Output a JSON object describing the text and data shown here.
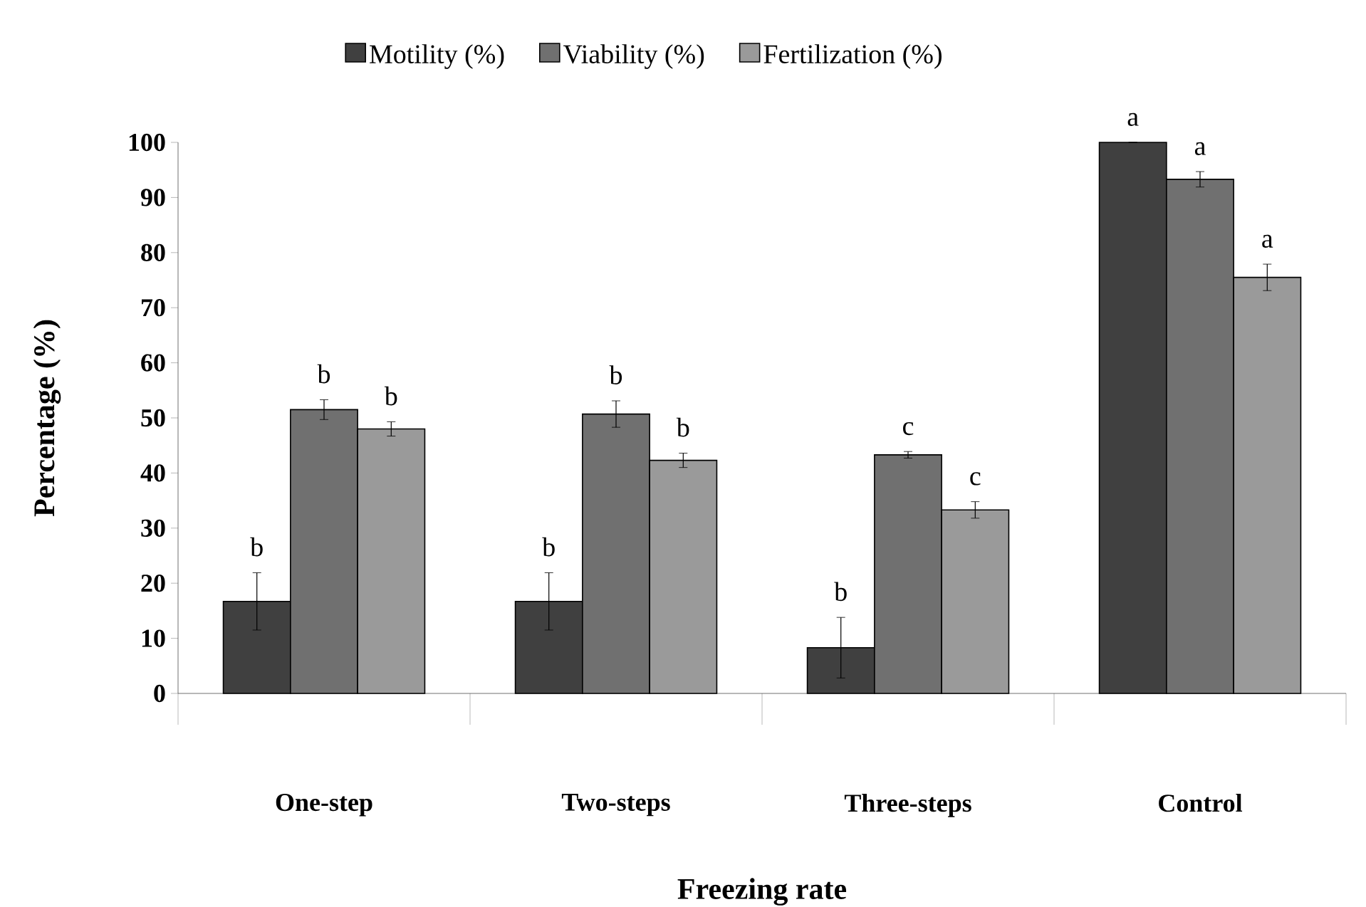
{
  "chart_data": {
    "type": "bar",
    "xlabel": "Freezing rate",
    "ylabel": "Percentage (%)",
    "categories": [
      "One-step",
      "Two-steps",
      "Three-steps",
      "Control"
    ],
    "series": [
      {
        "name": "Motility (%)",
        "color": "#404040",
        "values": [
          16.7,
          16.7,
          8.3,
          100
        ],
        "errors": [
          5.2,
          5.2,
          5.5,
          null
        ],
        "value_labels": [
          "b",
          "b",
          "b",
          "a"
        ]
      },
      {
        "name": "Viability (%)",
        "color": "#707070",
        "values": [
          51.5,
          50.7,
          43.3,
          93.3
        ],
        "errors": [
          1.8,
          2.4,
          0.6,
          1.4
        ],
        "value_labels": [
          "b",
          "b",
          "c",
          "a"
        ]
      },
      {
        "name": "Fertilization (%)",
        "color": "#9a9a9a",
        "values": [
          48,
          42.3,
          33.3,
          75.5
        ],
        "errors": [
          1.3,
          1.3,
          1.5,
          2.4
        ],
        "value_labels": [
          "b",
          "b",
          "c",
          "a"
        ]
      }
    ],
    "ylim": [
      0,
      100
    ],
    "yticks": [
      0,
      10,
      20,
      30,
      40,
      50,
      60,
      70,
      80,
      90,
      100
    ],
    "legend": "top",
    "grid": false
  }
}
